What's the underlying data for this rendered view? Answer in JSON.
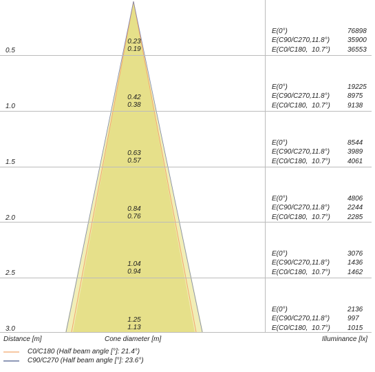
{
  "rows": [
    {
      "distance": "0.5",
      "diameter_c0": "0.23",
      "diameter_c90": "0.19",
      "e0_label": "E(0°)",
      "e0": "76898",
      "ec90_label": "E(C90/C270,",
      "ec90_angle": "11.8°)",
      "ec90": "35900",
      "ec0_label": "E(C0/C180,",
      "ec0_angle": "10.7°)",
      "ec0": "36553"
    },
    {
      "distance": "1.0",
      "diameter_c0": "0.42",
      "diameter_c90": "0.38",
      "e0_label": "E(0°)",
      "e0": "19225",
      "ec90_label": "E(C90/C270,",
      "ec90_angle": "11.8°)",
      "ec90": "8975",
      "ec0_label": "E(C0/C180,",
      "ec0_angle": "10.7°)",
      "ec0": "9138"
    },
    {
      "distance": "1.5",
      "diameter_c0": "0.63",
      "diameter_c90": "0.57",
      "e0_label": "E(0°)",
      "e0": "8544",
      "ec90_label": "E(C90/C270,",
      "ec90_angle": "11.8°)",
      "ec90": "3989",
      "ec0_label": "E(C0/C180,",
      "ec0_angle": "10.7°)",
      "ec0": "4061"
    },
    {
      "distance": "2.0",
      "diameter_c0": "0.84",
      "diameter_c90": "0.76",
      "e0_label": "E(0°)",
      "e0": "4806",
      "ec90_label": "E(C90/C270,",
      "ec90_angle": "11.8°)",
      "ec90": "2244",
      "ec0_label": "E(C0/C180,",
      "ec0_angle": "10.7°)",
      "ec0": "2285"
    },
    {
      "distance": "2.5",
      "diameter_c0": "1.04",
      "diameter_c90": "0.94",
      "e0_label": "E(0°)",
      "e0": "3076",
      "ec90_label": "E(C90/C270,",
      "ec90_angle": "11.8°)",
      "ec90": "1436",
      "ec0_label": "E(C0/C180,",
      "ec0_angle": "10.7°)",
      "ec0": "1462"
    },
    {
      "distance": "3.0",
      "diameter_c0": "1.25",
      "diameter_c90": "1.13",
      "e0_label": "E(0°)",
      "e0": "2136",
      "ec90_label": "E(C90/C270,",
      "ec90_angle": "11.8°)",
      "ec90": "997",
      "ec0_label": "E(C0/C180,",
      "ec0_angle": "10.7°)",
      "ec0": "1015"
    }
  ],
  "footer": {
    "distance": "Distance [m]",
    "diameter": "Cone diameter [m]",
    "illuminance": "Illuminance [lx]"
  },
  "legend": [
    "C0/C180 (Half beam angle [°]: 21.4°)",
    "C90/C270 (Half beam angle [°]: 23.6°)"
  ]
}
